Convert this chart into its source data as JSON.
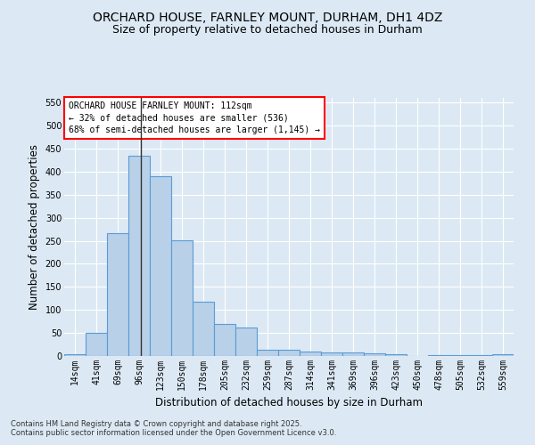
{
  "title1": "ORCHARD HOUSE, FARNLEY MOUNT, DURHAM, DH1 4DZ",
  "title2": "Size of property relative to detached houses in Durham",
  "xlabel": "Distribution of detached houses by size in Durham",
  "ylabel": "Number of detached properties",
  "categories": [
    "14sqm",
    "41sqm",
    "69sqm",
    "96sqm",
    "123sqm",
    "150sqm",
    "178sqm",
    "205sqm",
    "232sqm",
    "259sqm",
    "287sqm",
    "314sqm",
    "341sqm",
    "369sqm",
    "396sqm",
    "423sqm",
    "450sqm",
    "478sqm",
    "505sqm",
    "532sqm",
    "559sqm"
  ],
  "values": [
    3,
    51,
    266,
    435,
    390,
    251,
    117,
    70,
    62,
    13,
    13,
    9,
    7,
    7,
    5,
    4,
    0,
    1,
    1,
    1,
    3
  ],
  "bar_color": "#b8d0e8",
  "bar_edge_color": "#5b9bd5",
  "annotation_text": "ORCHARD HOUSE FARNLEY MOUNT: 112sqm\n← 32% of detached houses are smaller (536)\n68% of semi-detached houses are larger (1,145) →",
  "annotation_box_color": "white",
  "annotation_box_edge_color": "red",
  "background_color": "#dce9f5",
  "grid_color": "white",
  "ylim": [
    0,
    560
  ],
  "yticks": [
    0,
    50,
    100,
    150,
    200,
    250,
    300,
    350,
    400,
    450,
    500,
    550
  ],
  "footer1": "Contains HM Land Registry data © Crown copyright and database right 2025.",
  "footer2": "Contains public sector information licensed under the Open Government Licence v3.0.",
  "title_fontsize": 10,
  "subtitle_fontsize": 9,
  "tick_fontsize": 7,
  "label_fontsize": 8.5,
  "annot_fontsize": 7
}
